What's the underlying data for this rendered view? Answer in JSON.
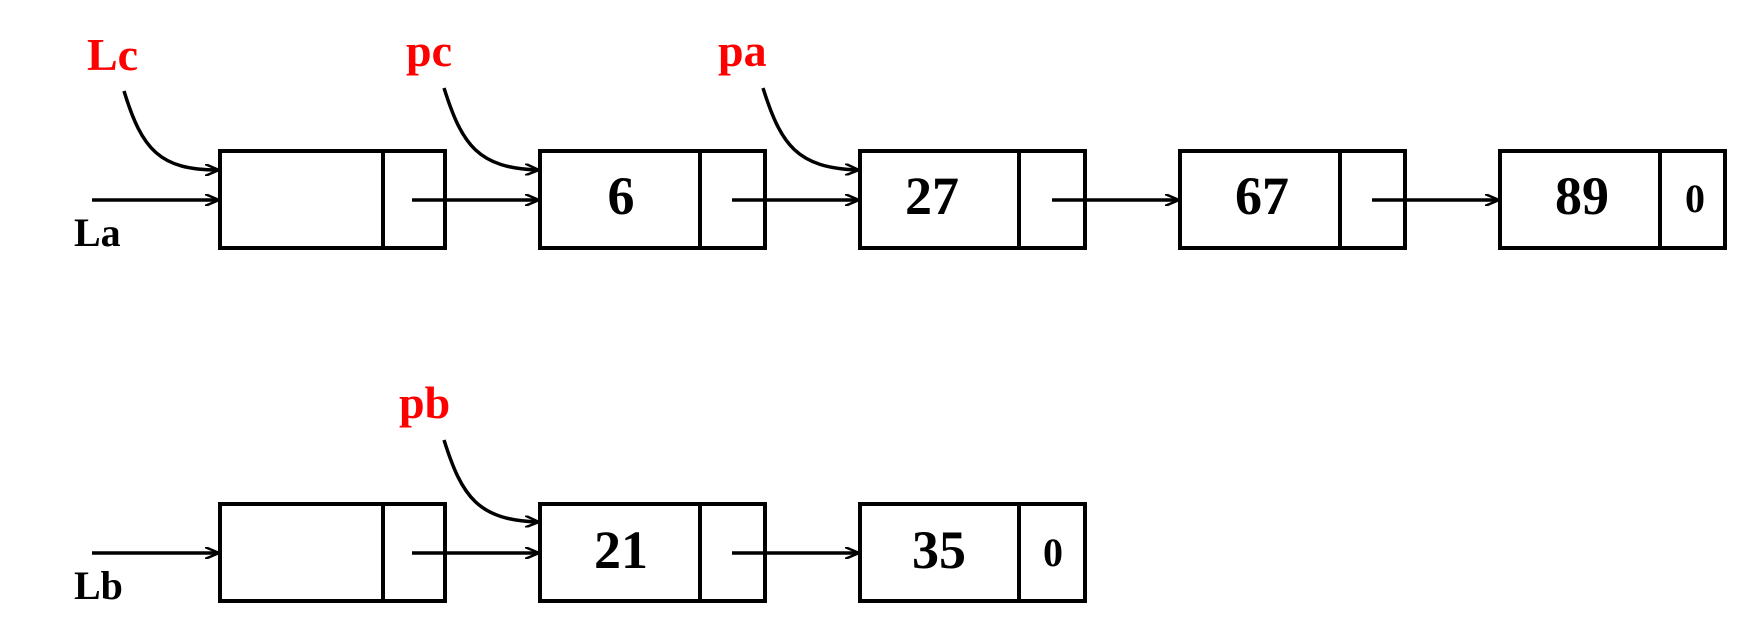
{
  "colors": {
    "pointer_label": "#ff0000",
    "stroke": "#000000"
  },
  "lists": {
    "a": {
      "head_label": "La",
      "nodes": [
        {
          "value": "6"
        },
        {
          "value": "27"
        },
        {
          "value": "67"
        },
        {
          "value": "89",
          "next": "0"
        }
      ]
    },
    "b": {
      "head_label": "Lb",
      "nodes": [
        {
          "value": "21"
        },
        {
          "value": "35",
          "next": "0"
        }
      ]
    }
  },
  "pointers": {
    "lc": "Lc",
    "pc": "pc",
    "pa": "pa",
    "pb": "pb"
  }
}
